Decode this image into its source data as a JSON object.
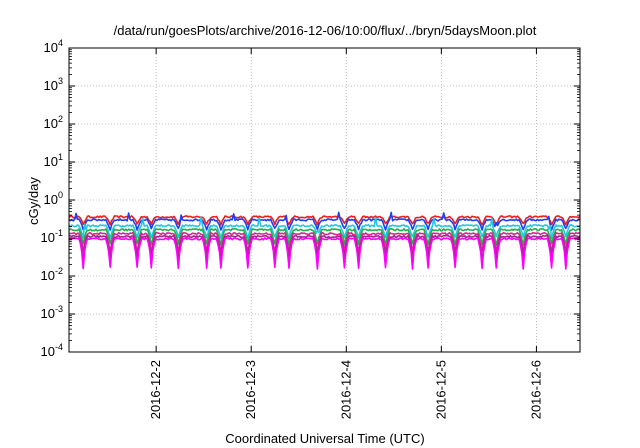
{
  "chart_data": {
    "type": "line",
    "title": "/data/run/goesPlots/archive/2016-12-06/10:00/flux/../bryn/5daysMoon.plot",
    "xlabel": "Coordinated Universal Time (UTC)",
    "ylabel": "cGy/day",
    "y_scale": "log",
    "ylim": [
      0.0001,
      10000
    ],
    "y_ticks": [
      {
        "value": 0.0001,
        "base": "10",
        "exp": "-4"
      },
      {
        "value": 0.001,
        "base": "10",
        "exp": "-3"
      },
      {
        "value": 0.01,
        "base": "10",
        "exp": "-2"
      },
      {
        "value": 0.1,
        "base": "10",
        "exp": "-1"
      },
      {
        "value": 1,
        "base": "10",
        "exp": "0"
      },
      {
        "value": 10,
        "base": "10",
        "exp": "1"
      },
      {
        "value": 100,
        "base": "10",
        "exp": "2"
      },
      {
        "value": 1000,
        "base": "10",
        "exp": "3"
      },
      {
        "value": 10000,
        "base": "10",
        "exp": "4"
      }
    ],
    "x_axis": {
      "type": "date",
      "range": [
        "2016-12-01T02:00",
        "2016-12-06T11:00"
      ],
      "ticks": [
        {
          "value": "2016-12-02T00:00",
          "label": "2016-12-2"
        },
        {
          "value": "2016-12-03T00:00",
          "label": "2016-12-3"
        },
        {
          "value": "2016-12-04T00:00",
          "label": "2016-12-4"
        },
        {
          "value": "2016-12-05T00:00",
          "label": "2016-12-5"
        },
        {
          "value": "2016-12-06T00:00",
          "label": "2016-12-6"
        }
      ]
    },
    "grid": true,
    "legend": "none",
    "series": [
      {
        "color": "#e8201f",
        "level": 0.36
      },
      {
        "color": "#2040f0",
        "level": 0.3
      },
      {
        "color": "#22c7e0",
        "level": 0.21
      },
      {
        "color": "#22b050",
        "level": 0.165
      },
      {
        "color": "#e0209a",
        "level": 0.13
      },
      {
        "color": "#9a2a8a",
        "level": 0.11
      },
      {
        "color": "#ff00ff",
        "level": 0.095
      }
    ]
  }
}
